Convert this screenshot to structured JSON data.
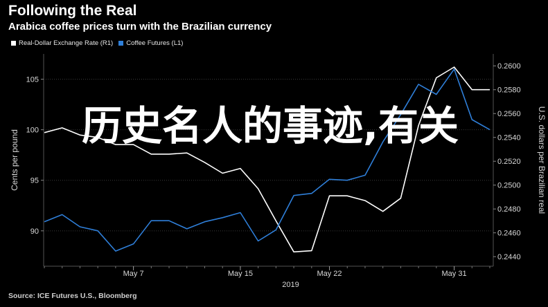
{
  "header": {
    "title": "Following the Real",
    "subtitle": "Arabica coffee prices turn with the Brazilian currency"
  },
  "legend": {
    "items": [
      {
        "label": "Real-Dollar Exchange Rate (R1)",
        "color": "#ffffff"
      },
      {
        "label": "Coffee Futures (L1)",
        "color": "#2f7fd9"
      }
    ]
  },
  "overlay_text": "历史名人的事迹,有关",
  "source": "Source: ICE Futures U.S., Bloomberg",
  "chart_data": {
    "type": "line",
    "x_tick_labels": [
      "May 7",
      "May 15",
      "May 22",
      "May 31"
    ],
    "x_tick_index": [
      5,
      11,
      16,
      23
    ],
    "x_year_label": "2019",
    "left_axis": {
      "label": "Cents per pound",
      "range": [
        86.5,
        107.5
      ],
      "ticks": [
        90,
        95,
        100,
        105
      ],
      "tick_labels": [
        "90",
        "95",
        "100",
        "105"
      ]
    },
    "right_axis": {
      "label": "U.S. dollars per Brazilian real",
      "range": [
        0.2432,
        0.261
      ],
      "ticks": [
        0.244,
        0.246,
        0.248,
        0.25,
        0.252,
        0.254,
        0.256,
        0.258,
        0.26
      ],
      "tick_labels": [
        "0.2440",
        "0.2460",
        "0.2480",
        "0.2500",
        "0.2520",
        "0.2540",
        "0.2560",
        "0.2580",
        "0.2600"
      ]
    },
    "series": [
      {
        "name": "Real-Dollar Exchange Rate (R1)",
        "axis": "right",
        "color": "#ffffff",
        "values": [
          0.2544,
          0.2548,
          0.2542,
          0.254,
          0.2534,
          0.2534,
          0.2526,
          0.2526,
          0.2527,
          0.2519,
          0.251,
          0.2514,
          0.2497,
          0.247,
          0.2444,
          0.2445,
          0.2491,
          0.2491,
          0.2487,
          0.2478,
          0.2489,
          0.255,
          0.259,
          0.2599,
          0.258,
          0.258
        ]
      },
      {
        "name": "Coffee Futures (L1)",
        "axis": "left",
        "color": "#2f7fd9",
        "values": [
          90.9,
          91.6,
          90.4,
          90.0,
          88.0,
          88.7,
          91.0,
          91.0,
          90.2,
          90.9,
          91.3,
          91.8,
          89.0,
          90.1,
          93.5,
          93.7,
          95.1,
          95.0,
          95.5,
          98.8,
          101.5,
          104.5,
          103.5,
          106.0,
          101.0,
          100.0
        ]
      }
    ]
  }
}
